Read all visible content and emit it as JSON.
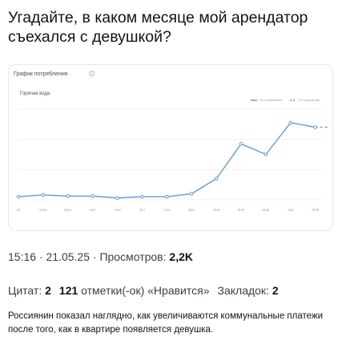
{
  "post": {
    "title": "Угадайте, в каком месяце мой арендатор съехался с девушкой?",
    "caption": "Россиянин показал наглядно, как увеличиваются коммунальные платежи после того, как в квартире появляется девушка."
  },
  "card": {
    "title": "График потребления",
    "info_icon": "i"
  },
  "meta": {
    "time": "15:16",
    "date": "21.05.25",
    "views_label": "Просмотров:",
    "views_value": "2,2K",
    "sep": "·"
  },
  "stats": {
    "quotes_label": "Цитат:",
    "quotes_value": "2",
    "likes_value": "121",
    "likes_label": "отметки(-ок) «Нравится»",
    "bookmarks_label": "Закладок:",
    "bookmarks_value": "2"
  },
  "colors": {
    "line": "#6a97cf",
    "grid": "#eef0f3"
  },
  "chart_data": {
    "type": "line",
    "title": "Горячая вода",
    "legend": [
      "По показаниям",
      "По нормативу"
    ],
    "legend_position": "top-right",
    "grid": true,
    "x": [
      "Ав",
      "Июн",
      "Июл",
      "Авг",
      "Сен",
      "Окт",
      "Ноя",
      "Дек",
      "Янв",
      "Фев",
      "Мар",
      "Апр",
      "Май"
    ],
    "series": [
      {
        "name": "По показаниям",
        "values": [
          1.0,
          1.6,
          1.2,
          1.2,
          0.6,
          1.0,
          1.0,
          2.0,
          7.0,
          18.5,
          15.0,
          25.5,
          24.0
        ]
      },
      {
        "name": "По нормативу",
        "values": [
          null,
          null,
          null,
          null,
          null,
          null,
          null,
          null,
          null,
          null,
          null,
          null,
          24.0
        ],
        "extend_to": 24.0
      }
    ],
    "ylim": [
      0,
      30
    ]
  }
}
